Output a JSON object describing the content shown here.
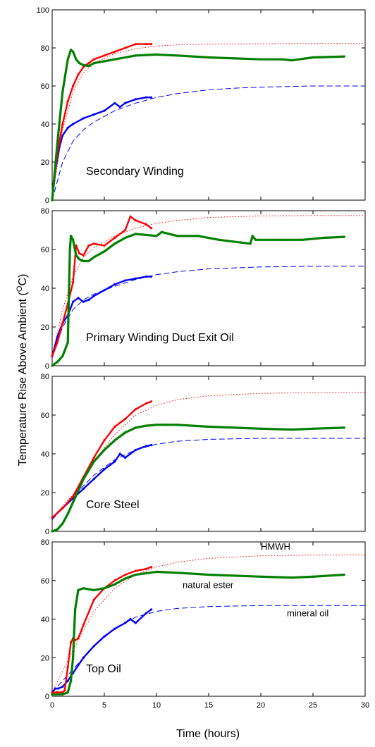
{
  "figure": {
    "ylabel": "Temperature Rise Above Ambient (",
    "ylabel_sup": "O",
    "ylabel_end": "C)",
    "xlabel": "Time (hours)",
    "x_ticks": [
      "0",
      "5",
      "10",
      "15",
      "20",
      "25",
      "30"
    ]
  },
  "colors": {
    "mineral_oil": "#0000ff",
    "hmwh": "#ff0000",
    "natural_ester": "#008000"
  },
  "chart_data": [
    {
      "type": "line",
      "panel_label": "Secondary Winding",
      "xlim": [
        0,
        30
      ],
      "ylim": [
        0,
        100
      ],
      "y_ticks": [
        0,
        20,
        40,
        60,
        80,
        100
      ],
      "series": [
        {
          "key": "mineral_oil",
          "style": "measured",
          "x": [
            0,
            0.3,
            0.7,
            1.0,
            1.5,
            2.0,
            3.0,
            4.0,
            5.0,
            6.0,
            6.5,
            7.0,
            8.0,
            9.0,
            9.5
          ],
          "y": [
            0,
            15,
            28,
            34,
            38,
            40,
            43,
            45,
            47,
            51,
            49,
            51,
            53,
            54,
            54
          ]
        },
        {
          "key": "mineral_oil",
          "style": "fit",
          "x": [
            0,
            1,
            2,
            3,
            4,
            5,
            6,
            8,
            10,
            12,
            15,
            18,
            21,
            25,
            30
          ],
          "y": [
            0,
            20,
            31,
            37,
            41,
            44,
            47,
            51,
            54,
            56,
            58,
            59,
            59.5,
            60,
            60
          ]
        },
        {
          "key": "hmwh",
          "style": "measured",
          "x": [
            0,
            0.5,
            1.0,
            1.5,
            2.0,
            2.5,
            3.0,
            3.5,
            4,
            5,
            6,
            7,
            8,
            9,
            9.5
          ],
          "y": [
            0,
            25,
            40,
            52,
            60,
            66,
            70,
            72,
            74,
            76,
            78,
            80,
            82,
            82,
            82
          ]
        },
        {
          "key": "hmwh",
          "style": "fit",
          "x": [
            0,
            1,
            2,
            3,
            4,
            6,
            8,
            10,
            12,
            15,
            20,
            25,
            30
          ],
          "y": [
            0,
            37,
            57,
            67,
            72,
            77,
            79.5,
            81,
            81.6,
            82,
            82.2,
            82.3,
            82.3
          ]
        },
        {
          "key": "natural_ester",
          "style": "measured",
          "x": [
            0,
            0.5,
            1.0,
            1.5,
            1.8,
            2.0,
            2.3,
            2.6,
            3,
            3.5,
            4,
            5,
            6,
            8,
            10,
            12,
            15,
            20,
            22,
            23,
            25,
            28
          ],
          "y": [
            0,
            30,
            57,
            74,
            79,
            78,
            74,
            72,
            71,
            70.5,
            72,
            73,
            74,
            76,
            76.5,
            76,
            75,
            74,
            74,
            73.5,
            75,
            75.5
          ]
        }
      ]
    },
    {
      "type": "line",
      "panel_label": "Primary Winding Duct Exit Oil",
      "xlim": [
        0,
        30
      ],
      "ylim": [
        0,
        80
      ],
      "y_ticks": [
        0,
        20,
        40,
        60,
        80
      ],
      "series": [
        {
          "key": "mineral_oil",
          "style": "measured",
          "x": [
            0,
            0.5,
            1.0,
            1.5,
            2.0,
            2.5,
            3,
            3.5,
            4,
            5,
            6,
            7,
            8,
            9,
            9.5
          ],
          "y": [
            5,
            15,
            22,
            26,
            33,
            35,
            33,
            34,
            36,
            39,
            42,
            44,
            45,
            46,
            46
          ]
        },
        {
          "key": "mineral_oil",
          "style": "fit",
          "x": [
            0,
            1,
            2,
            3,
            4,
            6,
            8,
            10,
            12,
            15,
            20,
            25,
            30
          ],
          "y": [
            4,
            20,
            29,
            34,
            37,
            41,
            44.5,
            47,
            48.5,
            50,
            51,
            51.3,
            51.4
          ]
        },
        {
          "key": "hmwh",
          "style": "measured",
          "x": [
            0,
            0.5,
            1,
            1.5,
            2.0,
            2.3,
            2.6,
            3,
            3.5,
            4,
            5,
            6,
            7,
            7.5,
            8,
            9,
            9.5
          ],
          "y": [
            5,
            12,
            22,
            32,
            43,
            62,
            58,
            57,
            62,
            63,
            62,
            66,
            70,
            77,
            75,
            73,
            71
          ]
        },
        {
          "key": "hmwh",
          "style": "fit",
          "x": [
            0,
            1,
            2,
            3,
            4,
            6,
            8,
            10,
            12,
            15,
            20,
            25,
            30
          ],
          "y": [
            5,
            29,
            46,
            56,
            61,
            67,
            71,
            73.5,
            75,
            76.5,
            77.3,
            77.5,
            77.5
          ]
        },
        {
          "key": "natural_ester",
          "style": "measured",
          "x": [
            0,
            0.5,
            1.0,
            1.5,
            1.7,
            1.8,
            2.0,
            2.3,
            2.6,
            3.0,
            3.5,
            4,
            5,
            6,
            7,
            8,
            10,
            10.5,
            12,
            14,
            16,
            19,
            19.2,
            19.5,
            22,
            24,
            26,
            28
          ],
          "y": [
            0,
            2,
            5,
            12,
            60,
            67,
            65,
            57,
            55,
            54,
            54,
            56,
            59,
            63,
            66,
            68,
            67,
            69,
            67,
            67,
            65,
            63,
            67,
            65,
            65,
            65,
            66,
            66.5
          ]
        }
      ]
    },
    {
      "type": "line",
      "panel_label": "Core Steel",
      "xlim": [
        0,
        30
      ],
      "ylim": [
        0,
        80
      ],
      "y_ticks": [
        0,
        20,
        40,
        60,
        80
      ],
      "series": [
        {
          "key": "mineral_oil",
          "style": "measured",
          "x": [
            0,
            1,
            2,
            3,
            4,
            5,
            6,
            6.5,
            7,
            8,
            9,
            9.5
          ],
          "y": [
            7,
            12,
            17,
            22,
            27,
            32,
            36,
            40,
            38,
            42,
            44,
            44.5
          ]
        },
        {
          "key": "mineral_oil",
          "style": "fit",
          "x": [
            0,
            2,
            4,
            6,
            8,
            10,
            12,
            15,
            20,
            25,
            30
          ],
          "y": [
            6,
            18,
            29,
            37,
            42,
            45,
            46.5,
            47.5,
            48,
            48,
            48
          ]
        },
        {
          "key": "hmwh",
          "style": "measured",
          "x": [
            0,
            1,
            2,
            3,
            4,
            5,
            6,
            7,
            8,
            9,
            9.5
          ],
          "y": [
            7,
            12,
            18,
            28,
            38,
            47,
            54,
            58,
            63,
            66,
            67
          ]
        },
        {
          "key": "hmwh",
          "style": "fit",
          "x": [
            0,
            2,
            4,
            6,
            8,
            10,
            12,
            15,
            20,
            25,
            30
          ],
          "y": [
            7,
            19,
            36,
            50,
            60,
            65,
            68,
            70,
            71.2,
            71.6,
            71.7
          ]
        },
        {
          "key": "natural_ester",
          "style": "measured",
          "x": [
            0,
            0.5,
            1,
            1.5,
            2,
            3,
            4,
            5,
            6,
            7,
            8,
            9,
            10,
            11,
            12,
            15,
            20,
            23,
            25,
            28
          ],
          "y": [
            0,
            1,
            4,
            9,
            15,
            27,
            36,
            42,
            47,
            51,
            53.5,
            54.5,
            55,
            55,
            55,
            54,
            53,
            52.5,
            53,
            53.5
          ]
        }
      ]
    },
    {
      "type": "line",
      "panel_label": "Top Oil",
      "xlim": [
        0,
        30
      ],
      "ylim": [
        0,
        80
      ],
      "y_ticks": [
        0,
        20,
        40,
        60,
        80
      ],
      "annotations": [
        {
          "text": "HMWH",
          "x": 20,
          "y": 76
        },
        {
          "text": "natural ester",
          "x": 12.5,
          "y": 56
        },
        {
          "text": "mineral oil",
          "x": 22.5,
          "y": 41.5
        }
      ],
      "series": [
        {
          "key": "mineral_oil",
          "style": "measured",
          "x": [
            0,
            0.3,
            0.6,
            1.0,
            1.5,
            2.0,
            3,
            4,
            5,
            6,
            7,
            7.5,
            8,
            9,
            9.5
          ],
          "y": [
            2,
            4,
            4,
            5,
            8,
            12,
            20,
            26,
            31,
            35,
            38,
            40,
            38,
            43,
            45
          ]
        },
        {
          "key": "mineral_oil",
          "style": "fit",
          "x": [
            0,
            2,
            4,
            6,
            8,
            10,
            12,
            15,
            20,
            25,
            30
          ],
          "y": [
            2,
            14,
            26,
            35,
            41,
            44,
            45.5,
            46.5,
            47,
            47,
            47
          ]
        },
        {
          "key": "hmwh",
          "style": "measured",
          "x": [
            0,
            0.5,
            1.0,
            1.2,
            1.5,
            1.8,
            2.0,
            2.2,
            2.5,
            3,
            4,
            5,
            6,
            7,
            8,
            9,
            9.5
          ],
          "y": [
            2,
            2,
            2,
            3,
            15,
            28,
            30,
            29,
            30,
            37,
            50,
            56,
            60,
            63,
            65,
            66,
            67
          ]
        },
        {
          "key": "hmwh",
          "style": "fit",
          "x": [
            0,
            2,
            4,
            6,
            8,
            10,
            12,
            15,
            20,
            25,
            30
          ],
          "y": [
            2,
            24,
            44,
            56,
            63,
            67,
            69.5,
            71.5,
            72.8,
            73.2,
            73.3
          ]
        },
        {
          "key": "natural_ester",
          "style": "measured",
          "x": [
            0,
            1,
            1.5,
            1.8,
            2.0,
            2.2,
            2.5,
            3,
            4,
            5,
            6,
            7,
            8,
            10,
            12,
            15,
            20,
            23,
            25,
            28
          ],
          "y": [
            1,
            1,
            2,
            8,
            20,
            45,
            55,
            56,
            55,
            56,
            58,
            61,
            63,
            64.5,
            64,
            63,
            62,
            61.5,
            62,
            63
          ]
        }
      ]
    }
  ]
}
